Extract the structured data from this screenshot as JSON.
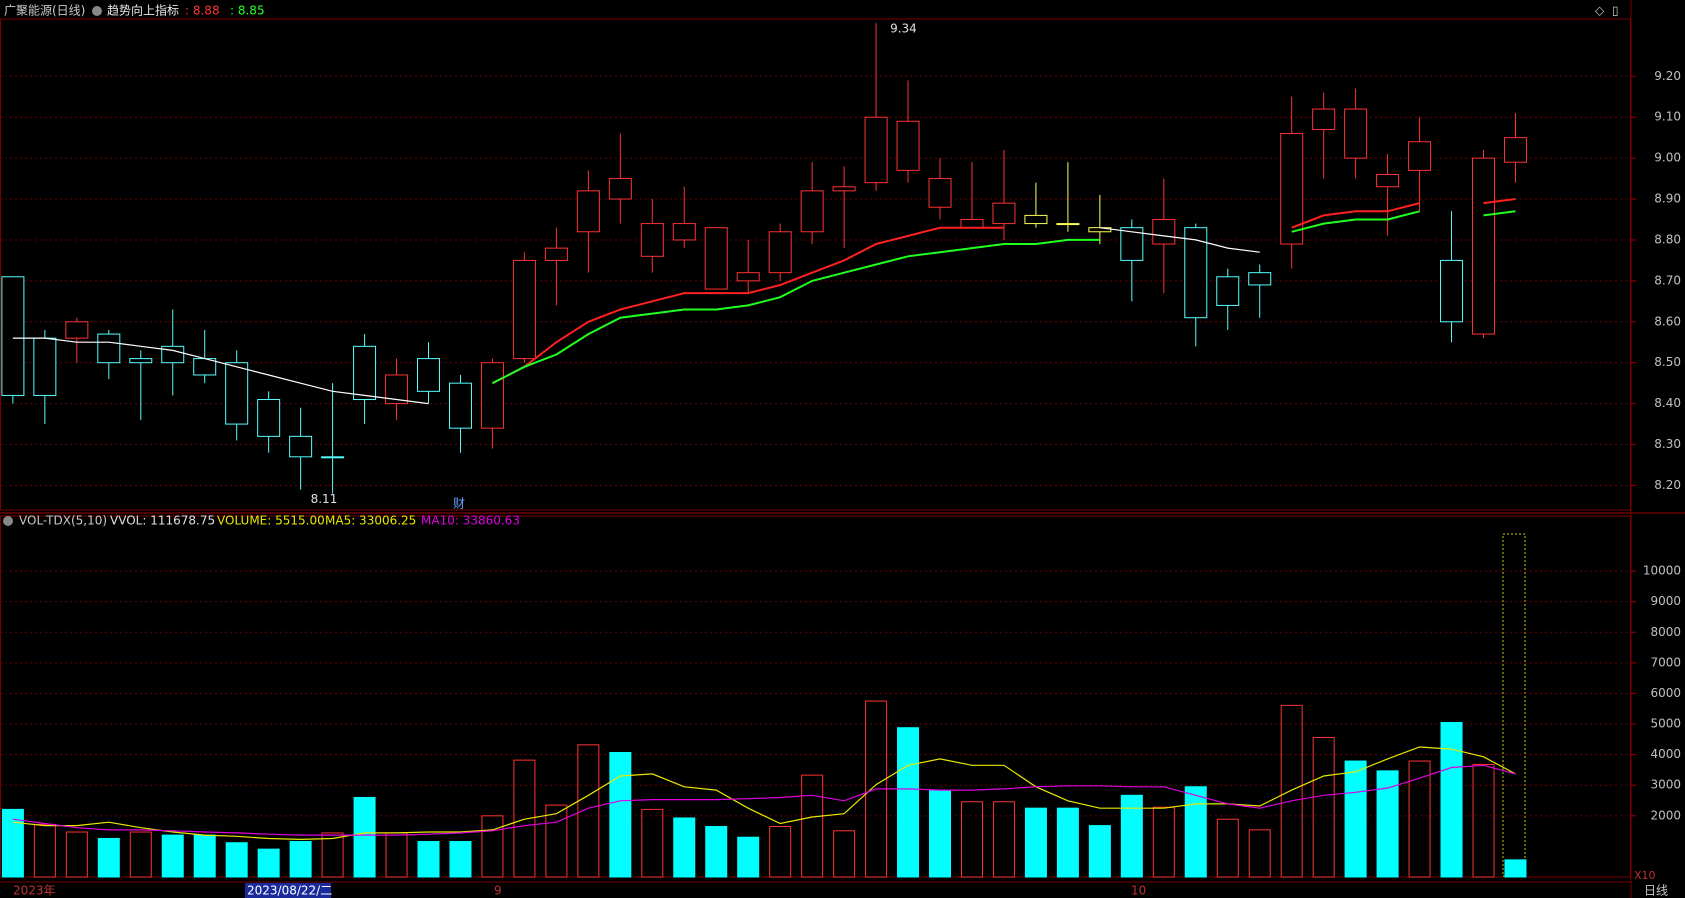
{
  "header": {
    "name": "广聚能源(日线)",
    "indicator": "趋势向上指标",
    "indicator_values": [
      ": 8.88",
      ": 8.85"
    ]
  },
  "volume_header": {
    "name": "VOL-TDX(5,10)",
    "stats": [
      "VVOL: 111678.75",
      "VOLUME: 5515.00",
      "MA5: 33006.25",
      "MA10: 33860.63"
    ]
  },
  "footer": {
    "year": "2023年",
    "date": "2023/08/22/二",
    "months": [
      "9",
      "10"
    ],
    "scale": "X10",
    "period": "日线",
    "marker": "财"
  },
  "chart_data": [
    {
      "type": "candlestick",
      "open": [
        8.71,
        8.56,
        8.56,
        8.57,
        8.51,
        8.54,
        8.51,
        8.5,
        8.41,
        8.32,
        8.27,
        8.54,
        8.4,
        8.51,
        8.45,
        8.34,
        8.51,
        8.75,
        8.82,
        8.9,
        8.76,
        8.8,
        8.68,
        8.7,
        8.72,
        8.82,
        8.92,
        8.94,
        8.97,
        8.88,
        8.83,
        8.84,
        8.84,
        8.84,
        8.83,
        8.83,
        8.79,
        8.83,
        8.71,
        8.72,
        8.79,
        9.07,
        9.0,
        8.93,
        8.97,
        8.75,
        8.57,
        8.99
      ],
      "close": [
        8.42,
        8.42,
        8.6,
        8.5,
        8.5,
        8.5,
        8.47,
        8.35,
        8.32,
        8.27,
        8.27,
        8.41,
        8.47,
        8.43,
        8.34,
        8.5,
        8.75,
        8.78,
        8.92,
        8.95,
        8.84,
        8.84,
        8.83,
        8.72,
        8.82,
        8.92,
        8.93,
        9.1,
        9.09,
        8.95,
        8.85,
        8.89,
        8.86,
        8.84,
        8.82,
        8.75,
        8.85,
        8.61,
        8.64,
        8.69,
        9.06,
        9.12,
        9.12,
        8.96,
        9.04,
        8.6,
        9.0,
        9.05
      ],
      "high": [
        8.71,
        8.58,
        8.61,
        8.58,
        8.53,
        8.63,
        8.58,
        8.53,
        8.43,
        8.39,
        8.45,
        8.57,
        8.51,
        8.55,
        8.47,
        8.51,
        8.77,
        8.83,
        8.97,
        9.06,
        8.9,
        8.93,
        8.83,
        8.8,
        8.84,
        8.99,
        8.98,
        9.33,
        9.19,
        9.0,
        8.99,
        9.02,
        8.94,
        8.99,
        8.91,
        8.85,
        8.95,
        8.84,
        8.73,
        8.74,
        9.15,
        9.16,
        9.17,
        9.01,
        9.1,
        8.87,
        9.02,
        9.11
      ],
      "low": [
        8.4,
        8.35,
        8.5,
        8.46,
        8.36,
        8.42,
        8.45,
        8.31,
        8.28,
        8.19,
        8.18,
        8.35,
        8.36,
        8.4,
        8.28,
        8.29,
        8.5,
        8.64,
        8.72,
        8.84,
        8.72,
        8.78,
        8.68,
        8.67,
        8.7,
        8.79,
        8.78,
        8.92,
        8.94,
        8.85,
        8.83,
        8.8,
        8.83,
        8.82,
        8.79,
        8.65,
        8.67,
        8.54,
        8.58,
        8.61,
        8.73,
        8.95,
        8.95,
        8.81,
        8.87,
        8.55,
        8.56,
        8.94
      ],
      "colors": [
        "#54ffff",
        "#54ffff",
        "#ff3232",
        "#54ffff",
        "#54ffff",
        "#54ffff",
        "#54ffff",
        "#54ffff",
        "#54ffff",
        "#54ffff",
        "#54ffff",
        "#54ffff",
        "#ff3232",
        "#54ffff",
        "#54ffff",
        "#ff3232",
        "#ff3232",
        "#ff3232",
        "#ff3232",
        "#ff3232",
        "#ff3232",
        "#ff3232",
        "#ff3232",
        "#ff3232",
        "#ff3232",
        "#ff3232",
        "#ff3232",
        "#ff3232",
        "#ff3232",
        "#ff3232",
        "#ff3232",
        "#ff3232",
        "#ffff54",
        "#ffff54",
        "#ffff54",
        "#54ffff",
        "#ff3232",
        "#54ffff",
        "#54ffff",
        "#54ffff",
        "#ff3232",
        "#ff3232",
        "#ff3232",
        "#ff3232",
        "#ff3232",
        "#54ffff",
        "#ff3232",
        "#ff3232"
      ],
      "lines": [
        {
          "color": "#ffffff",
          "values": [
            8.56,
            8.56,
            8.55,
            8.55,
            8.54,
            8.53,
            8.51,
            8.49,
            8.47,
            8.45,
            8.43,
            8.42,
            8.41,
            8.4,
            null,
            null,
            null,
            null,
            null,
            null,
            null,
            null,
            null,
            null,
            null,
            null,
            null,
            null,
            null,
            null,
            null,
            null,
            null,
            null,
            8.83,
            8.82,
            8.81,
            8.8,
            8.78,
            8.77,
            null,
            null,
            null,
            null,
            null,
            null,
            null,
            null
          ]
        },
        {
          "color": "#ff2020",
          "values": [
            null,
            null,
            null,
            null,
            null,
            null,
            null,
            null,
            null,
            null,
            null,
            null,
            null,
            null,
            null,
            8.45,
            8.49,
            8.55,
            8.6,
            8.63,
            8.65,
            8.67,
            8.67,
            8.67,
            8.69,
            8.72,
            8.75,
            8.79,
            8.81,
            8.83,
            8.83,
            8.83,
            null,
            null,
            null,
            null,
            null,
            null,
            null,
            null,
            8.83,
            8.86,
            8.87,
            8.87,
            8.89,
            null,
            8.89,
            8.9
          ]
        },
        {
          "color": "#20ff20",
          "values": [
            null,
            null,
            null,
            null,
            null,
            null,
            null,
            null,
            null,
            null,
            null,
            null,
            null,
            null,
            null,
            8.45,
            8.49,
            8.52,
            8.57,
            8.61,
            8.62,
            8.63,
            8.63,
            8.64,
            8.66,
            8.7,
            8.72,
            8.74,
            8.76,
            8.77,
            8.78,
            8.79,
            8.79,
            8.8,
            8.8,
            null,
            null,
            null,
            null,
            null,
            8.82,
            8.84,
            8.85,
            8.85,
            8.87,
            null,
            8.86,
            8.87
          ]
        }
      ],
      "annotations": [
        "9.34",
        "8.11"
      ],
      "ylim": [
        8.14,
        9.34
      ],
      "yticks": [
        {
          "value": 8.2,
          "label": "8.20"
        },
        {
          "value": 8.3,
          "label": "8.30"
        },
        {
          "value": 8.4,
          "label": "8.40"
        },
        {
          "value": 8.5,
          "label": "8.50"
        },
        {
          "value": 8.6,
          "label": "8.60"
        },
        {
          "value": 8.7,
          "label": "8.70"
        },
        {
          "value": 8.8,
          "label": "8.80"
        },
        {
          "value": 8.9,
          "label": "8.90"
        },
        {
          "value": 9.0,
          "label": "9.00"
        },
        {
          "value": 9.1,
          "label": "9.10"
        },
        {
          "value": 9.2,
          "label": "9.20"
        }
      ],
      "grid": true
    },
    {
      "type": "bar",
      "values": [
        2210,
        1720,
        1470,
        1260,
        1470,
        1370,
        1370,
        1120,
        910,
        1160,
        1440,
        2600,
        1440,
        1160,
        1160,
        2000,
        3820,
        2350,
        4320,
        4070,
        2210,
        1930,
        1650,
        1300,
        1650,
        3330,
        1510,
        5750,
        4880,
        2840,
        2460,
        2460,
        2250,
        2250,
        1680,
        2670,
        2280,
        2950,
        1890,
        1540,
        5610,
        4560,
        3790,
        3470,
        3790,
        5050,
        3680,
        560
      ],
      "colors": [
        "#00ffff",
        "#ff3232",
        "#ff3232",
        "#00ffff",
        "#ff3232",
        "#00ffff",
        "#00ffff",
        "#00ffff",
        "#00ffff",
        "#00ffff",
        "#ff3232",
        "#00ffff",
        "#ff3232",
        "#00ffff",
        "#00ffff",
        "#ff3232",
        "#ff3232",
        "#ff3232",
        "#ff3232",
        "#00ffff",
        "#ff3232",
        "#00ffff",
        "#00ffff",
        "#00ffff",
        "#ff3232",
        "#ff3232",
        "#ff3232",
        "#ff3232",
        "#00ffff",
        "#00ffff",
        "#ff3232",
        "#ff3232",
        "#00ffff",
        "#00ffff",
        "#00ffff",
        "#00ffff",
        "#ff3232",
        "#00ffff",
        "#ff3232",
        "#ff3232",
        "#ff3232",
        "#ff3232",
        "#00ffff",
        "#00ffff",
        "#ff3232",
        "#00ffff",
        "#ff3232",
        "#00ffff"
      ],
      "filled": [
        true,
        false,
        false,
        true,
        false,
        true,
        true,
        true,
        true,
        true,
        false,
        true,
        false,
        true,
        true,
        false,
        false,
        false,
        false,
        true,
        false,
        true,
        true,
        true,
        false,
        false,
        false,
        false,
        true,
        true,
        false,
        false,
        true,
        true,
        true,
        true,
        false,
        true,
        false,
        false,
        false,
        false,
        true,
        true,
        false,
        true,
        false,
        true
      ],
      "lines": [
        {
          "color": "#e8e800",
          "values": [
            1790,
            1680,
            1680,
            1790,
            1610,
            1470,
            1370,
            1330,
            1260,
            1230,
            1260,
            1440,
            1440,
            1470,
            1470,
            1540,
            1890,
            2070,
            2670,
            3300,
            3370,
            2950,
            2840,
            2250,
            1750,
            1960,
            2070,
            3020,
            3650,
            3860,
            3650,
            3650,
            2950,
            2490,
            2250,
            2250,
            2250,
            2390,
            2390,
            2320,
            2840,
            3300,
            3440,
            3860,
            4250,
            4180,
            3930,
            3370
          ]
        },
        {
          "color": "#e000e0",
          "values": [
            1890,
            1750,
            1610,
            1540,
            1540,
            1510,
            1470,
            1440,
            1400,
            1370,
            1370,
            1370,
            1370,
            1400,
            1440,
            1510,
            1680,
            1790,
            2250,
            2490,
            2530,
            2530,
            2530,
            2560,
            2600,
            2670,
            2490,
            2880,
            2880,
            2840,
            2840,
            2880,
            2950,
            2980,
            2980,
            2950,
            2950,
            2670,
            2390,
            2250,
            2490,
            2670,
            2770,
            2910,
            3230,
            3580,
            3650,
            3370
          ]
        }
      ],
      "ylim": [
        0,
        11800
      ],
      "yticks": [
        2000,
        3000,
        4000,
        5000,
        6000,
        7000,
        8000,
        9000,
        10000
      ],
      "grid": true
    }
  ]
}
